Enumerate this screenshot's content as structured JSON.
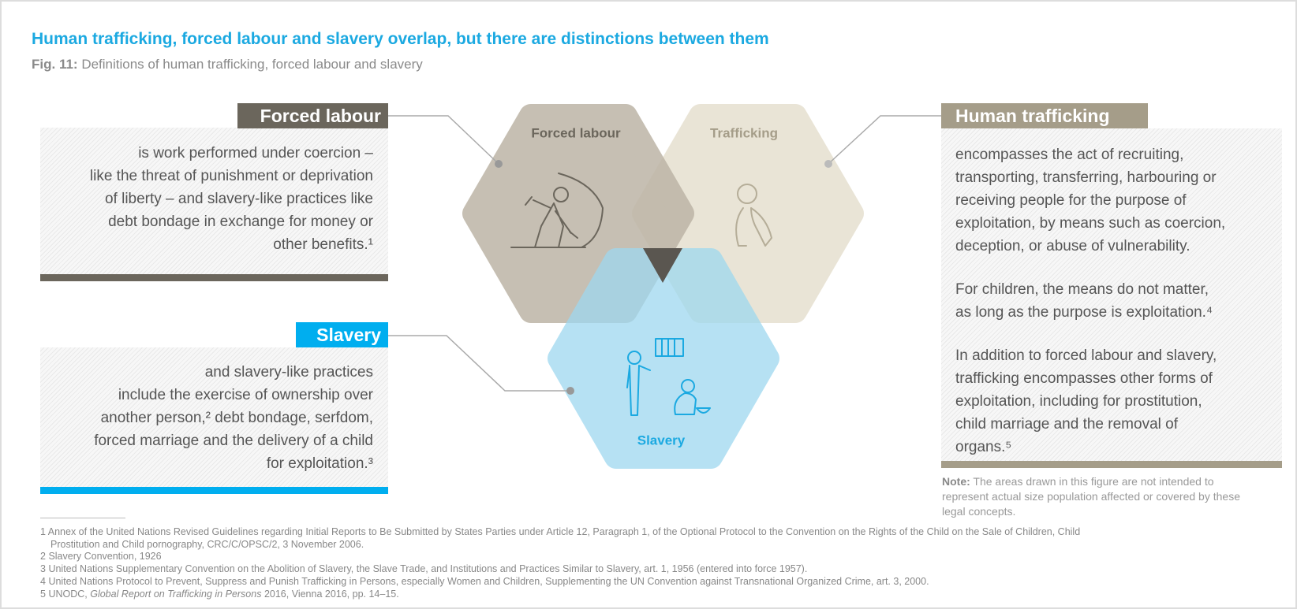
{
  "header": {
    "title": "Human trafficking, forced labour and slavery overlap, but there are distinctions between them",
    "figure_label": "Fig. 11:",
    "figure_caption": "Definitions of human trafficking, forced labour and slavery"
  },
  "definitions": [
    {
      "title": "Forced labour",
      "paragraphs": [
        [
          "is work performed under coercion –",
          "like the threat of punishment or deprivation",
          "of liberty – and slavery-like practices like",
          "debt bondage in exchange for money or",
          "other benefits.¹"
        ]
      ]
    },
    {
      "title": "Slavery",
      "paragraphs": [
        [
          "and slavery-like practices",
          "include the exercise of ownership over",
          "another person,² debt bondage, serfdom,",
          "forced marriage and the delivery of a child",
          "for exploitation.³"
        ]
      ]
    },
    {
      "title": "Human trafficking",
      "paragraphs": [
        [
          "encompasses the act of recruiting,",
          "transporting, transferring, harbouring or",
          "receiving people for the purpose of",
          "exploitation, by means such as coercion,",
          "deception, or abuse of vulnerability."
        ],
        [
          "For children, the means do not matter,",
          "as long as the purpose is exploitation.⁴"
        ],
        [
          "In addition to forced labour and slavery,",
          "trafficking encompasses other forms of",
          "exploitation, including for prostitution,",
          "child marriage and the removal of",
          "organs.⁵"
        ]
      ]
    }
  ],
  "diagram": {
    "labels": [
      "Forced labour",
      "Trafficking",
      "Slavery"
    ]
  },
  "note": {
    "label": "Note:",
    "lines": [
      "The areas drawn in this figure are not intended to",
      "represent actual size population affected or covered by these",
      "legal concepts."
    ]
  },
  "footnotes": [
    {
      "number": "1",
      "lines": [
        "Annex of the United Nations Revised Guidelines regarding Initial Reports to Be Submitted by States Parties under Article 12, Paragraph 1, of the Optional Protocol to the Convention on the Rights of the Child on the Sale of Children, Child",
        "Prostitution and Child pornography, CRC/C/OPSC/2, 3 November 2006."
      ]
    },
    {
      "number": "2",
      "lines": [
        "Slavery Convention, 1926"
      ]
    },
    {
      "number": "3",
      "lines": [
        "United Nations Supplementary Convention on the Abolition of Slavery, the Slave Trade, and Institutions and Practices Similar to Slavery, art. 1, 1956 (entered into force 1957)."
      ]
    },
    {
      "number": "4",
      "lines": [
        "United Nations Protocol to Prevent, Suppress and Punish Trafficking in Persons, especially Women and Children, Supplementing the UN Convention against Transnational Organized Crime, art. 3, 2000."
      ]
    },
    {
      "number": "5",
      "lines": [
        "UNODC,"
      ],
      "italic": "Global Report on Trafficking in Persons",
      "after": "2016, Vienna 2016, pp. 14–15."
    }
  ]
}
